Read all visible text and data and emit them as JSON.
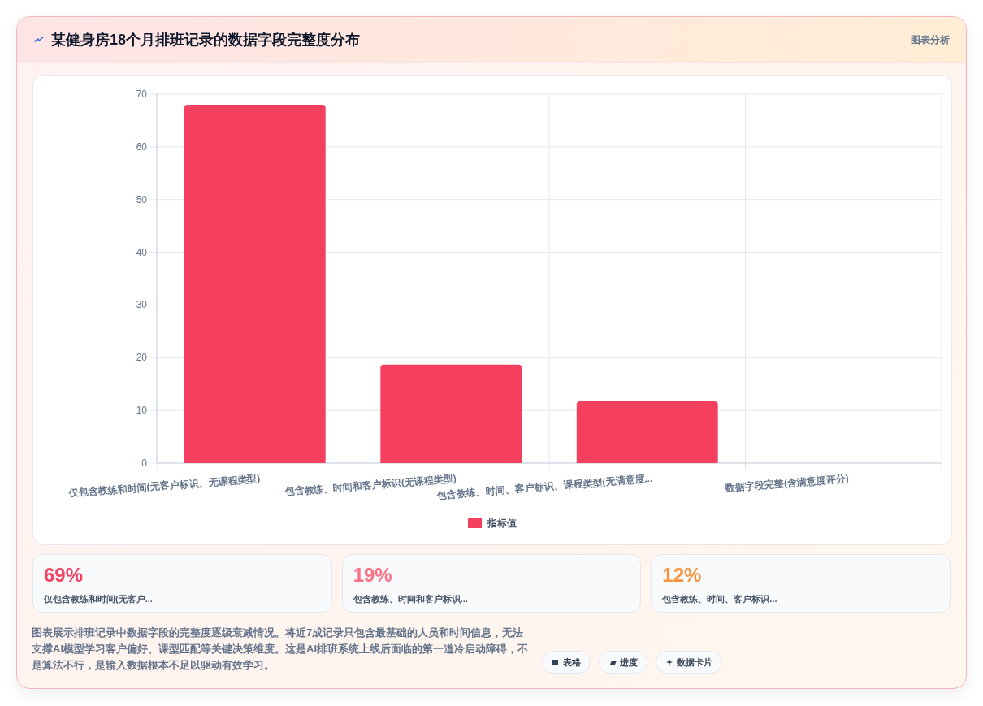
{
  "chart_data": [
    {
      "type": "bar",
      "title": "某健身房18个月排班记录的数据字段完整度分布",
      "categories": [
        "仅包含教练和时间(无客户标识、无课程类型)",
        "包含教练、时间和客户标识(无课程类型)",
        "包含教练、时间、客户标识、课程类型(无满意度...",
        "数据字段完整(含满意度评分)"
      ],
      "series": [
        {
          "name": "指标值",
          "color": "#f43f5e",
          "values": [
            68,
            18.7,
            11.7,
            0
          ]
        }
      ],
      "ylim": [
        0,
        70
      ],
      "yticks": [
        0,
        10,
        20,
        30,
        40,
        50,
        60,
        70
      ],
      "grid": true,
      "legend": "bottom",
      "annotations": [
        "图表分析",
        "图表展示排班记录中数据字段的完整度逐级衰减情况。将近7成记录只包含最基础的人员和时间信息，无法支撑AI模型学习客户偏好、课型匹配等关键决策维度。这是AI排班系统上线后面临的第一道冷启动障碍，不是算法不行，是输入数据根本不足以驱动有效学习。"
      ]
    },
    {
      "type": "other",
      "annotations": [
        "69%",
        "仅包含教练和时间(无客户...",
        "19%",
        "包含教练、时间和客户标识...",
        "12%",
        "包含教练、时间、客户标识..."
      ],
      "colors": [
        "#f43f5e",
        "#fb7185",
        "#fb923c"
      ]
    },
    {
      "type": "other",
      "annotations": [
        "表格",
        "进度",
        "数据卡片"
      ]
    }
  ]
}
